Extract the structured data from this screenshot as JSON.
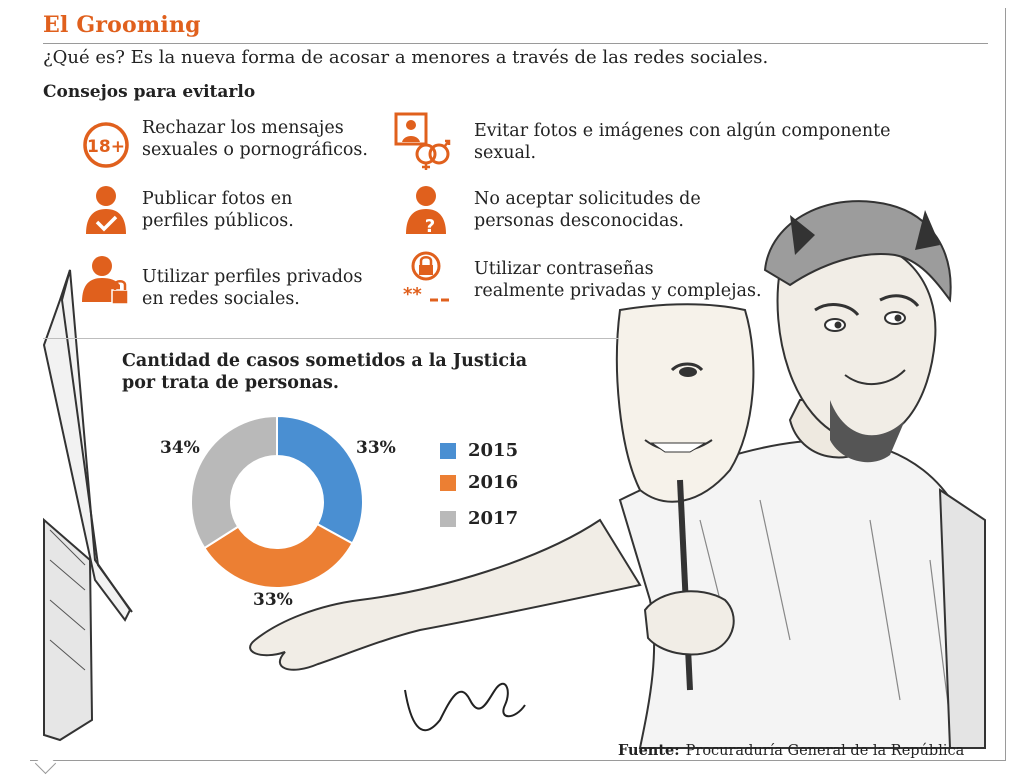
{
  "header": {
    "title": "El Grooming",
    "intro": "¿Qué es? Es la nueva forma de acosar a menores a través de las redes sociales.",
    "subhead": "Consejos para evitarlo"
  },
  "tips": [
    {
      "icon": "adults-only-18-icon",
      "text": "Rechazar los mensajes\nsexuales o pornográficos."
    },
    {
      "icon": "explicit-photo-icon",
      "text": "Evitar fotos e imágenes con algún componente\nsexual."
    },
    {
      "icon": "user-check-icon",
      "text": "Publicar fotos en\nperfiles públicos."
    },
    {
      "icon": "user-question-icon",
      "text": "No aceptar solicitudes de\npersonas desconocidas."
    },
    {
      "icon": "user-lock-icon",
      "text": "Utilizar perfiles privados\nen redes sociales."
    },
    {
      "icon": "password-lock-icon",
      "text": "Utilizar contraseñas\nrealmente privadas y complejas."
    }
  ],
  "chart_data": {
    "type": "pie",
    "title": "Cantidad de casos sometidos a la Justicia por trata de personas.",
    "categories": [
      "2015",
      "2016",
      "2017"
    ],
    "values": [
      33,
      33,
      34
    ],
    "labels": [
      "33%",
      "33%",
      "34%"
    ],
    "colors": [
      "#4a8fd2",
      "#ec7f33",
      "#b9b9b9"
    ],
    "legend": "right"
  },
  "source": {
    "label": "Fuente:",
    "text": "Procuraduría General de la República"
  },
  "colors": {
    "accent": "#e0601d"
  }
}
